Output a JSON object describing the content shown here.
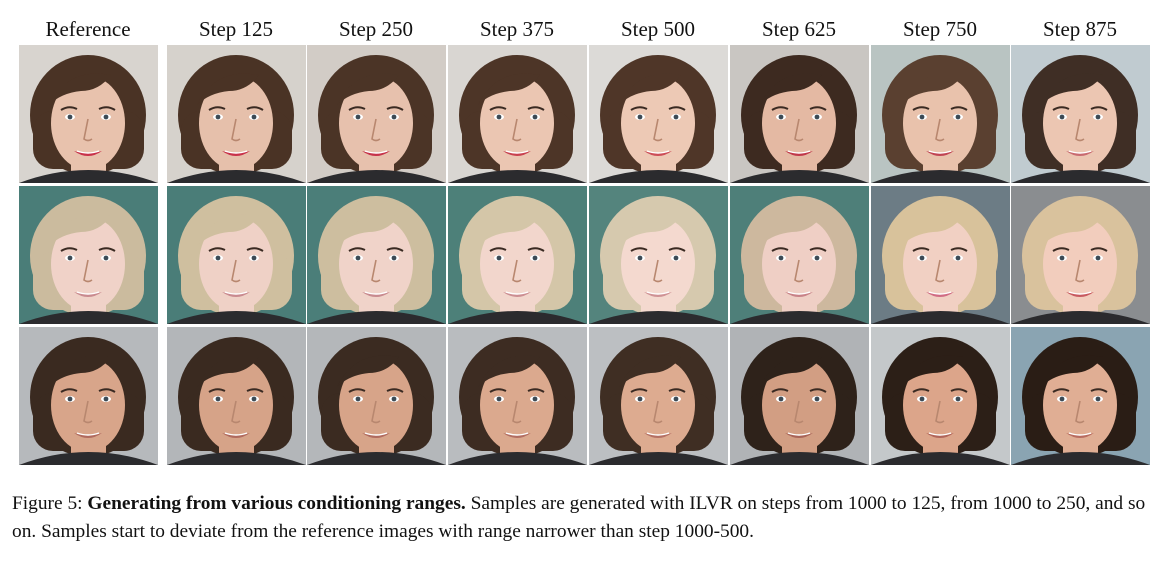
{
  "columns": [
    "Reference",
    "Step 125",
    "Step 250",
    "Step 375",
    "Step 500",
    "Step 625",
    "Step 750",
    "Step 875"
  ],
  "rows": [
    {
      "name": "person-1",
      "bg": [
        "#d8d4cf",
        "#d6d2cc",
        "#d2ccc6",
        "#d9d6d2",
        "#dcdad7",
        "#c9c6c2",
        "#b9c4c2",
        "#c0cbd0"
      ],
      "hair": [
        "#4a3325",
        "#4a3325",
        "#4b3426",
        "#4d3527",
        "#4f3628",
        "#3d2a20",
        "#5a4030",
        "#3f2e25"
      ],
      "skin": [
        "#e8c2ad",
        "#e6c0ab",
        "#e7c1ad",
        "#ebc6b2",
        "#edc9b5",
        "#e4b9a3",
        "#e9c2ac",
        "#ecc6b2"
      ],
      "lips": [
        "#c8324a",
        "#c8324a",
        "#c6334a",
        "#c8414f",
        "#cc4d57",
        "#c0384a",
        "#c04453",
        "#c86a70"
      ]
    },
    {
      "name": "person-2",
      "bg": [
        "#4a7d78",
        "#4a7d78",
        "#4b7e79",
        "#4d8079",
        "#54847d",
        "#4e7f79",
        "#6c7c85",
        "#8a8d90"
      ],
      "hair": [
        "#cbbb9e",
        "#cfbf9f",
        "#cdbe9f",
        "#d4c6a8",
        "#d6c9ae",
        "#cdb89e",
        "#d8c29b",
        "#d9c29d"
      ],
      "skin": [
        "#f0d2c8",
        "#efd1c6",
        "#f0d3c9",
        "#f2d6cc",
        "#f4d9cf",
        "#efcfc5",
        "#f1d0c3",
        "#f2cdbd"
      ],
      "lips": [
        "#c98a8f",
        "#c98a8f",
        "#c88a8f",
        "#cc8e92",
        "#cf9295",
        "#c88288",
        "#d06c84",
        "#c75a60"
      ]
    },
    {
      "name": "person-3",
      "bg": [
        "#b6b9bc",
        "#b3b6b9",
        "#b4b7ba",
        "#b9bcbf",
        "#bcbfc2",
        "#b0b3b6",
        "#c4c8ca",
        "#8aa4b2"
      ],
      "hair": [
        "#3a2a20",
        "#3a2a20",
        "#3b2b21",
        "#3d2c22",
        "#3f2e23",
        "#2e221a",
        "#2c1f17",
        "#2a1d15"
      ],
      "skin": [
        "#d8a58a",
        "#d6a388",
        "#d7a489",
        "#dba98e",
        "#ddab90",
        "#d29e83",
        "#dca58a",
        "#e0ae94"
      ],
      "lips": [
        "#b06a5e",
        "#b06a5e",
        "#b06b5f",
        "#b26e62",
        "#b47064",
        "#a86458",
        "#b0655a",
        "#b86c60"
      ]
    }
  ],
  "caption": {
    "label": "Figure 5:",
    "title": "Generating from various conditioning ranges.",
    "text": "Samples are generated with ILVR on steps from 1000 to 125, from 1000 to 250, and so on. Samples start to deviate from the reference images with range narrower than step 1000-500."
  }
}
